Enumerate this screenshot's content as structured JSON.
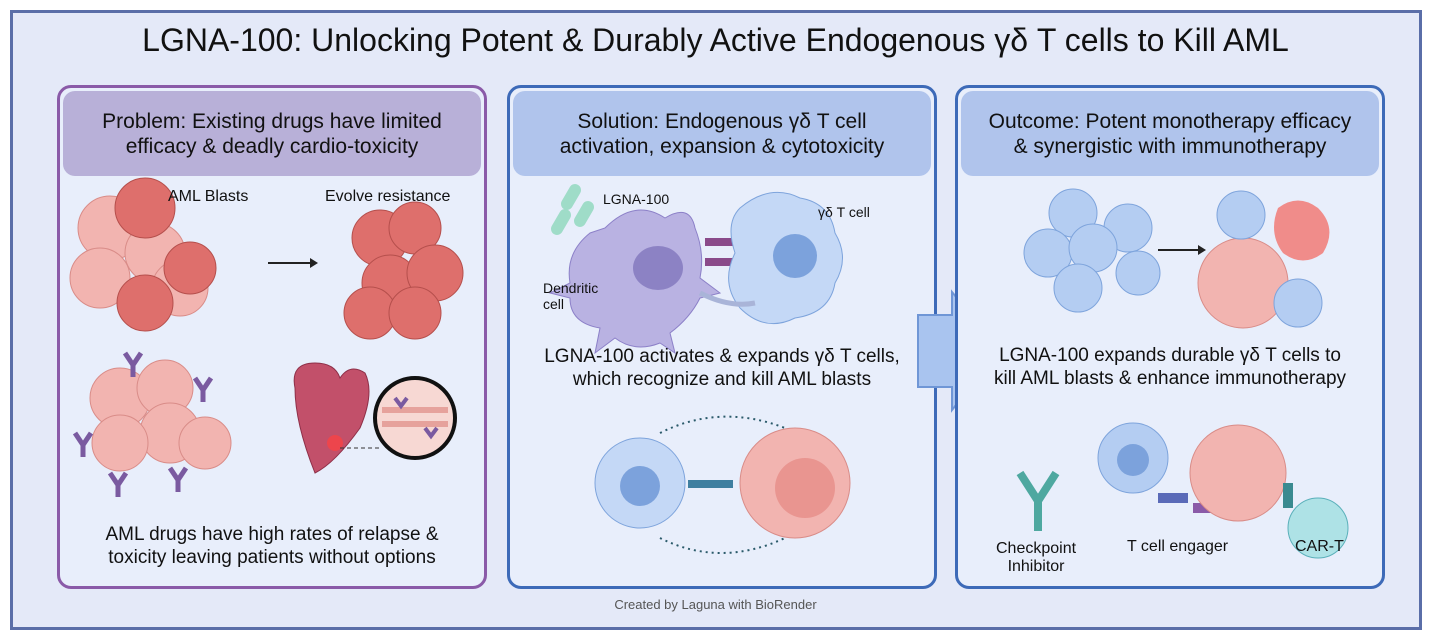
{
  "title": "LGNA-100: Unlocking Potent & Durably Active Endogenous γδ T cells to Kill AML",
  "problem": {
    "heading": [
      "Problem: Existing drugs have limited",
      "efficacy & deadly cardio-toxicity"
    ],
    "labels": {
      "blasts": "AML Blasts",
      "resistance": "Evolve resistance"
    },
    "caption": [
      "AML drugs have high rates of relapse &",
      "toxicity leaving patients without options"
    ]
  },
  "solution": {
    "heading": [
      "Solution: Endogenous γδ T cell",
      "activation, expansion & cytotoxicity"
    ],
    "labels": {
      "drug": "LGNA-100",
      "tcell": "γδ T cell",
      "dc1": "Dendritic",
      "dc2": "cell"
    },
    "caption": [
      "LGNA-100 activates & expands γδ T cells,",
      "which recognize and kill AML blasts"
    ]
  },
  "outcome": {
    "heading": [
      "Outcome: Potent monotherapy efficacy",
      "& synergistic with immunotherapy"
    ],
    "caption": [
      "LGNA-100 expands durable γδ T cells to",
      "kill AML blasts & enhance immunotherapy"
    ],
    "labels": {
      "checkpoint1": "Checkpoint",
      "checkpoint2": "Inhibitor",
      "engager": "T cell engager",
      "cart": "CAR-T"
    }
  },
  "footer": "Created by Laguna with BioRender",
  "colors": {
    "frame": "#5a6ea8",
    "problem": "#8a5aa8",
    "solution": "#3d6ab8",
    "aml": "#e07a7a",
    "tcell": "#a9c4ef"
  }
}
